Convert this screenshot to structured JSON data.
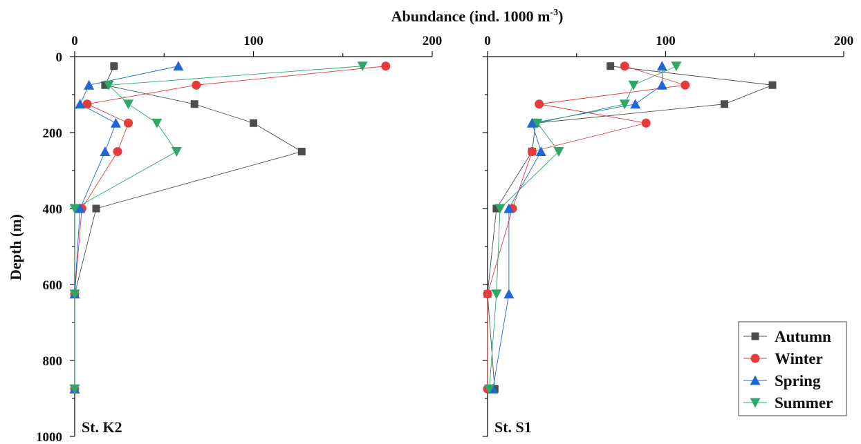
{
  "figure": {
    "xlabel": "Abundance  (ind. 1000 m",
    "xlabel_unit_superscript": "-3",
    "xlabel_close": ")",
    "ylabel": "Depth (m)"
  },
  "chart_data": [
    {
      "type": "line",
      "panel_label": "St. K2",
      "x_label": "Abundance  (ind. 1000 m-3)",
      "y_label": "Depth (m)",
      "xlim": [
        0,
        200
      ],
      "ylim": [
        0,
        1000
      ],
      "y_inverted": true,
      "x_axis_position": "top",
      "x_ticks": [
        0,
        100,
        200
      ],
      "y_ticks": [
        0,
        200,
        400,
        600,
        800,
        1000
      ],
      "series": [
        {
          "name": "Autumn",
          "color": "#4d4d4d",
          "marker": "square",
          "points": [
            [
              22,
              25
            ],
            [
              17,
              75
            ],
            [
              67,
              125
            ],
            [
              100,
              175
            ],
            [
              127,
              250
            ],
            [
              12,
              400
            ],
            [
              0,
              625
            ],
            [
              0,
              875
            ]
          ]
        },
        {
          "name": "Winter",
          "color": "#e63b3b",
          "marker": "circle",
          "points": [
            [
              174,
              25
            ],
            [
              68,
              75
            ],
            [
              7,
              125
            ],
            [
              30,
              175
            ],
            [
              24,
              250
            ],
            [
              4,
              400
            ],
            [
              0,
              625
            ],
            [
              0,
              875
            ]
          ]
        },
        {
          "name": "Spring",
          "color": "#1f66d6",
          "marker": "triangle-up",
          "points": [
            [
              58,
              25
            ],
            [
              8,
              75
            ],
            [
              3,
              125
            ],
            [
              23,
              175
            ],
            [
              17,
              250
            ],
            [
              3,
              400
            ],
            [
              0,
              625
            ],
            [
              0,
              875
            ]
          ]
        },
        {
          "name": "Summer",
          "color": "#2ea866",
          "marker": "triangle-down",
          "points": [
            [
              161,
              25
            ],
            [
              19,
              75
            ],
            [
              30,
              125
            ],
            [
              46,
              175
            ],
            [
              57,
              250
            ],
            [
              0,
              400
            ],
            [
              0,
              625
            ],
            [
              0,
              875
            ]
          ]
        }
      ]
    },
    {
      "type": "line",
      "panel_label": "St. S1",
      "x_label": "Abundance  (ind. 1000 m-3)",
      "y_label": "Depth (m)",
      "xlim": [
        0,
        200
      ],
      "ylim": [
        0,
        1000
      ],
      "y_inverted": true,
      "x_axis_position": "top",
      "x_ticks": [
        0,
        100,
        200
      ],
      "y_ticks": [
        0,
        200,
        400,
        600,
        800,
        1000
      ],
      "legend_position": "bottom-right",
      "series": [
        {
          "name": "Autumn",
          "color": "#4d4d4d",
          "marker": "square",
          "points": [
            [
              69,
              25
            ],
            [
              160,
              75
            ],
            [
              133,
              125
            ],
            [
              27,
              175
            ],
            [
              25,
              250
            ],
            [
              5,
              400
            ],
            [
              0,
              625
            ],
            [
              4,
              875
            ]
          ]
        },
        {
          "name": "Winter",
          "color": "#e63b3b",
          "marker": "circle",
          "points": [
            [
              77,
              25
            ],
            [
              111,
              75
            ],
            [
              29,
              125
            ],
            [
              89,
              175
            ],
            [
              25,
              250
            ],
            [
              14,
              400
            ],
            [
              0,
              625
            ],
            [
              0,
              875
            ]
          ]
        },
        {
          "name": "Spring",
          "color": "#1f66d6",
          "marker": "triangle-up",
          "points": [
            [
              98,
              25
            ],
            [
              98,
              75
            ],
            [
              83,
              125
            ],
            [
              25,
              175
            ],
            [
              30,
              250
            ],
            [
              12,
              400
            ],
            [
              12,
              625
            ],
            [
              3,
              875
            ]
          ]
        },
        {
          "name": "Summer",
          "color": "#2ea866",
          "marker": "triangle-down",
          "points": [
            [
              106,
              25
            ],
            [
              82,
              75
            ],
            [
              77,
              125
            ],
            [
              28,
              175
            ],
            [
              40,
              250
            ],
            [
              7,
              400
            ],
            [
              5,
              625
            ],
            [
              1,
              875
            ]
          ]
        }
      ]
    }
  ]
}
